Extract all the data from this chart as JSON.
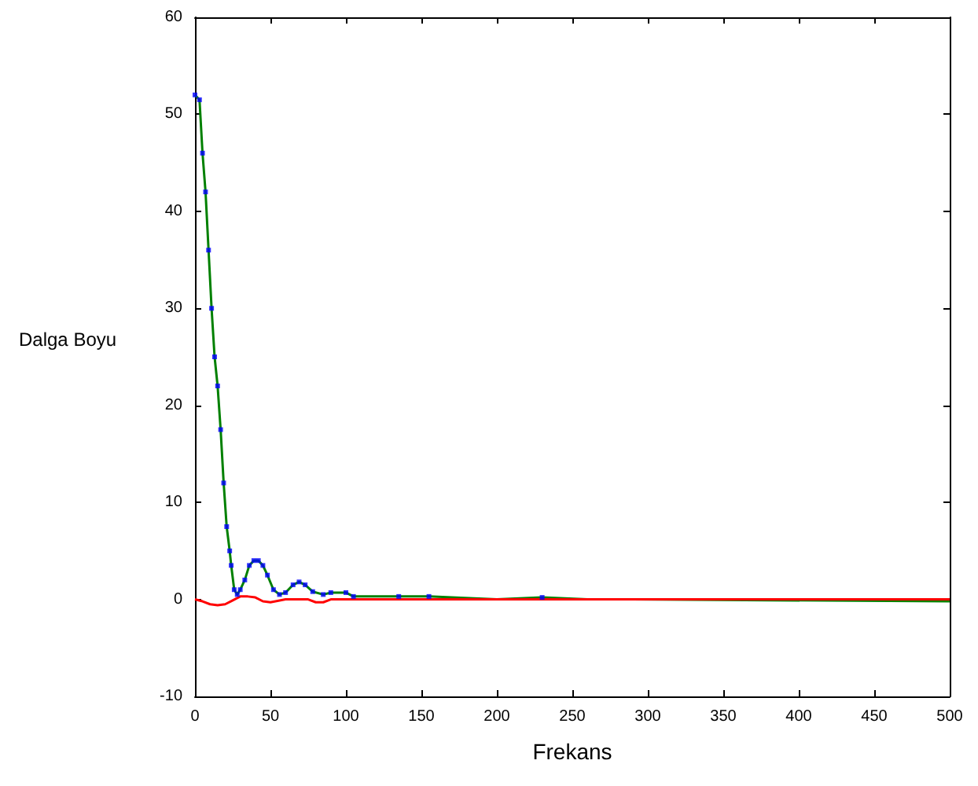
{
  "chart_data": {
    "type": "line",
    "xlabel": "Frekans",
    "ylabel": "Dalga Boyu",
    "xlim": [
      0,
      500
    ],
    "ylim": [
      -10,
      60
    ],
    "xticks": [
      0,
      50,
      100,
      150,
      200,
      250,
      300,
      350,
      400,
      450,
      500
    ],
    "yticks": [
      -10,
      0,
      10,
      20,
      30,
      40,
      50,
      60
    ],
    "grid": false,
    "series": [
      {
        "type": "scatter",
        "marker": "square",
        "color": "#0000ff",
        "x": [
          0,
          3,
          5,
          7,
          9,
          11,
          13,
          15,
          17,
          19,
          21,
          23,
          24,
          26,
          28,
          30,
          33,
          36,
          39,
          42,
          45,
          48,
          52,
          56,
          60,
          65,
          69,
          73,
          78,
          85,
          90,
          100,
          105,
          135,
          155,
          230
        ],
        "values": [
          52,
          51.5,
          46,
          42,
          36,
          30,
          25,
          22,
          17.5,
          12,
          7.5,
          5,
          3.5,
          1,
          0.5,
          1,
          2,
          3.5,
          4,
          4,
          3.5,
          2.5,
          1,
          0.5,
          0.7,
          1.5,
          1.8,
          1.5,
          0.8,
          0.5,
          0.7,
          0.7,
          0.3,
          0.3,
          0.3,
          0.2
        ]
      },
      {
        "marker": "none",
        "color": "#008000",
        "x": [
          0,
          3,
          5,
          7,
          9,
          11,
          13,
          15,
          17,
          19,
          21,
          23,
          24,
          26,
          28,
          30,
          33,
          36,
          39,
          42,
          45,
          48,
          52,
          56,
          60,
          65,
          69,
          73,
          78,
          85,
          90,
          100,
          105,
          135,
          155,
          200,
          230,
          260,
          290,
          500
        ],
        "values": [
          52,
          51.5,
          46,
          42,
          36,
          30,
          25,
          22,
          17.5,
          12,
          7.5,
          5,
          3.5,
          1,
          0.5,
          1,
          2,
          3.5,
          4,
          4,
          3.5,
          2.5,
          1,
          0.5,
          0.7,
          1.5,
          1.8,
          1.5,
          0.8,
          0.5,
          0.7,
          0.7,
          0.3,
          0.3,
          0.3,
          0,
          0.2,
          0,
          0,
          -0.2
        ]
      },
      {
        "marker": "none",
        "color": "#ff0000",
        "x": [
          0,
          5,
          10,
          15,
          20,
          25,
          30,
          35,
          40,
          45,
          50,
          60,
          75,
          80,
          85,
          90,
          500
        ],
        "values": [
          0,
          -0.2,
          -0.5,
          -0.6,
          -0.5,
          -0.1,
          0.3,
          0.3,
          0.2,
          -0.2,
          -0.3,
          0,
          0,
          -0.3,
          -0.3,
          0,
          0
        ]
      }
    ]
  }
}
